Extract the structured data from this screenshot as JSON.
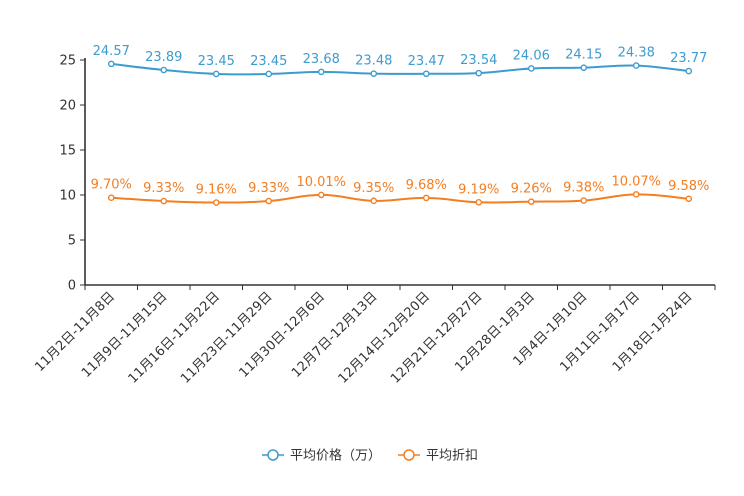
{
  "chart_data": {
    "type": "line",
    "title": "",
    "xlabel": "",
    "ylabel": "",
    "ylim": [
      0,
      25
    ],
    "yticks": [
      0,
      5,
      10,
      15,
      20,
      25
    ],
    "grid": false,
    "legend_position": "bottom-center",
    "categories": [
      "11月2日-11月8日",
      "11月9日-11月15日",
      "11月16日-11月22日",
      "11月23日-11月29日",
      "11月30日-12月6日",
      "12月7日-12月13日",
      "12月14日-12月20日",
      "12月21日-12月27日",
      "12月28日-1月3日",
      "1月4日-1月10日",
      "1月11日-1月17日",
      "1月18日-1月24日"
    ],
    "series": [
      {
        "name": "平均价格（万）",
        "color": "#3d9ccf",
        "values": [
          24.57,
          23.89,
          23.45,
          23.45,
          23.68,
          23.48,
          23.47,
          23.54,
          24.06,
          24.15,
          24.38,
          23.77
        ],
        "labels": [
          "24.57",
          "23.89",
          "23.45",
          "23.45",
          "23.68",
          "23.48",
          "23.47",
          "23.54",
          "24.06",
          "24.15",
          "24.38",
          "23.77"
        ]
      },
      {
        "name": "平均折扣",
        "color": "#f57e20",
        "values": [
          9.7,
          9.33,
          9.16,
          9.33,
          10.01,
          9.35,
          9.68,
          9.19,
          9.26,
          9.38,
          10.07,
          9.58
        ],
        "labels": [
          "9.70%",
          "9.33%",
          "9.16%",
          "9.33%",
          "10.01%",
          "9.35%",
          "9.68%",
          "9.19%",
          "9.26%",
          "9.38%",
          "10.07%",
          "9.58%"
        ]
      }
    ]
  }
}
